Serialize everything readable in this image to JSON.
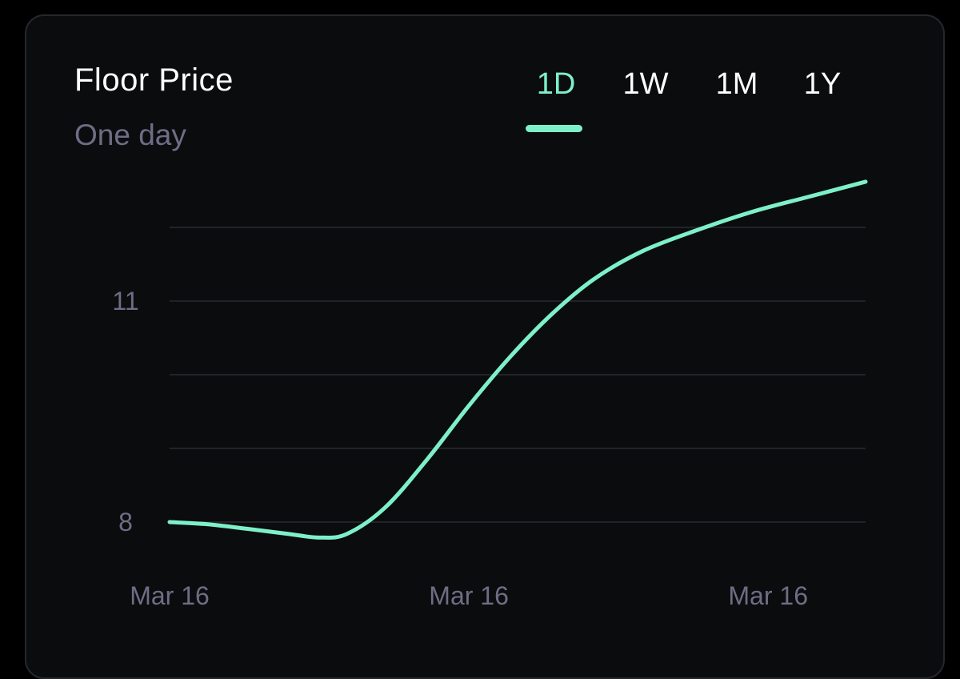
{
  "chart_data": {
    "type": "line",
    "title": "Floor Price",
    "subtitle": "One day",
    "tabs": [
      {
        "label": "1D",
        "active": true
      },
      {
        "label": "1W",
        "active": false
      },
      {
        "label": "1M",
        "active": false
      },
      {
        "label": "1Y",
        "active": false
      }
    ],
    "x_tick_labels": [
      "Mar 16",
      "Mar 16",
      "Mar 16"
    ],
    "y_ticks": [
      8,
      11
    ],
    "ylim": [
      8,
      12.5
    ],
    "y_gridlines": [
      8,
      9,
      10,
      11,
      12
    ],
    "grid": true,
    "series": [
      {
        "color": "#7ef0c8",
        "points": [
          {
            "x": 0,
            "y": 8.0
          },
          {
            "x": 0.055,
            "y": 7.97
          },
          {
            "x": 0.11,
            "y": 7.91
          },
          {
            "x": 0.17,
            "y": 7.84
          },
          {
            "x": 0.215,
            "y": 7.79
          },
          {
            "x": 0.255,
            "y": 7.84
          },
          {
            "x": 0.31,
            "y": 8.2
          },
          {
            "x": 0.37,
            "y": 8.85
          },
          {
            "x": 0.43,
            "y": 9.58
          },
          {
            "x": 0.49,
            "y": 10.25
          },
          {
            "x": 0.55,
            "y": 10.83
          },
          {
            "x": 0.61,
            "y": 11.3
          },
          {
            "x": 0.68,
            "y": 11.68
          },
          {
            "x": 0.76,
            "y": 11.97
          },
          {
            "x": 0.84,
            "y": 12.22
          },
          {
            "x": 0.92,
            "y": 12.42
          },
          {
            "x": 1.0,
            "y": 12.62
          }
        ]
      }
    ]
  }
}
